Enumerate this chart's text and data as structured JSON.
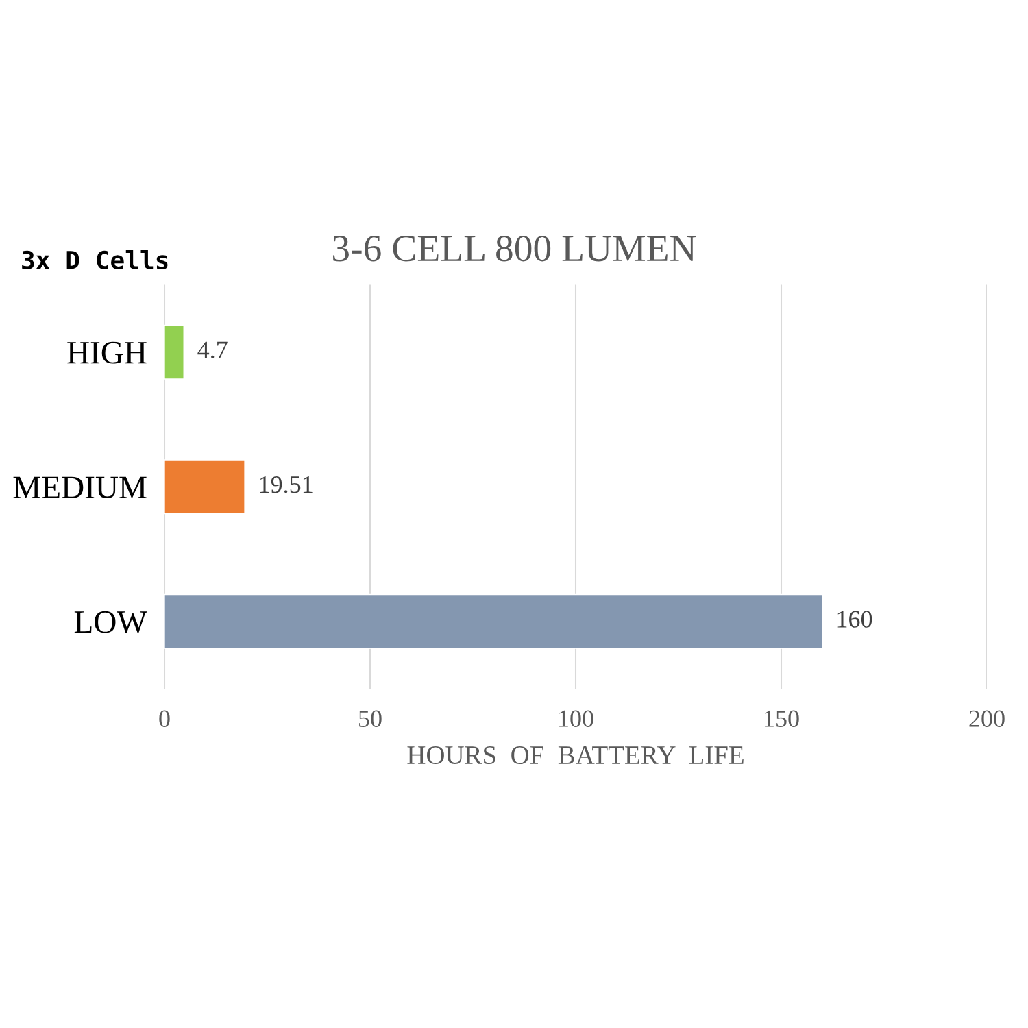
{
  "chart_data": {
    "type": "bar",
    "orientation": "horizontal",
    "title": "3-6 CELL 800 LUMEN",
    "xlabel": "HOURS  OF  BATTERY  LIFE",
    "categories": [
      "HIGH",
      "MEDIUM",
      "LOW"
    ],
    "values": [
      4.7,
      19.51,
      160
    ],
    "colors": [
      "#92d050",
      "#ed7d31",
      "#8497b0"
    ],
    "xlim": [
      0,
      200
    ],
    "xticks": [
      0,
      50,
      100,
      150,
      200
    ],
    "grid": "x",
    "data_labels": true,
    "annotations": [
      "3x D Cells"
    ]
  }
}
